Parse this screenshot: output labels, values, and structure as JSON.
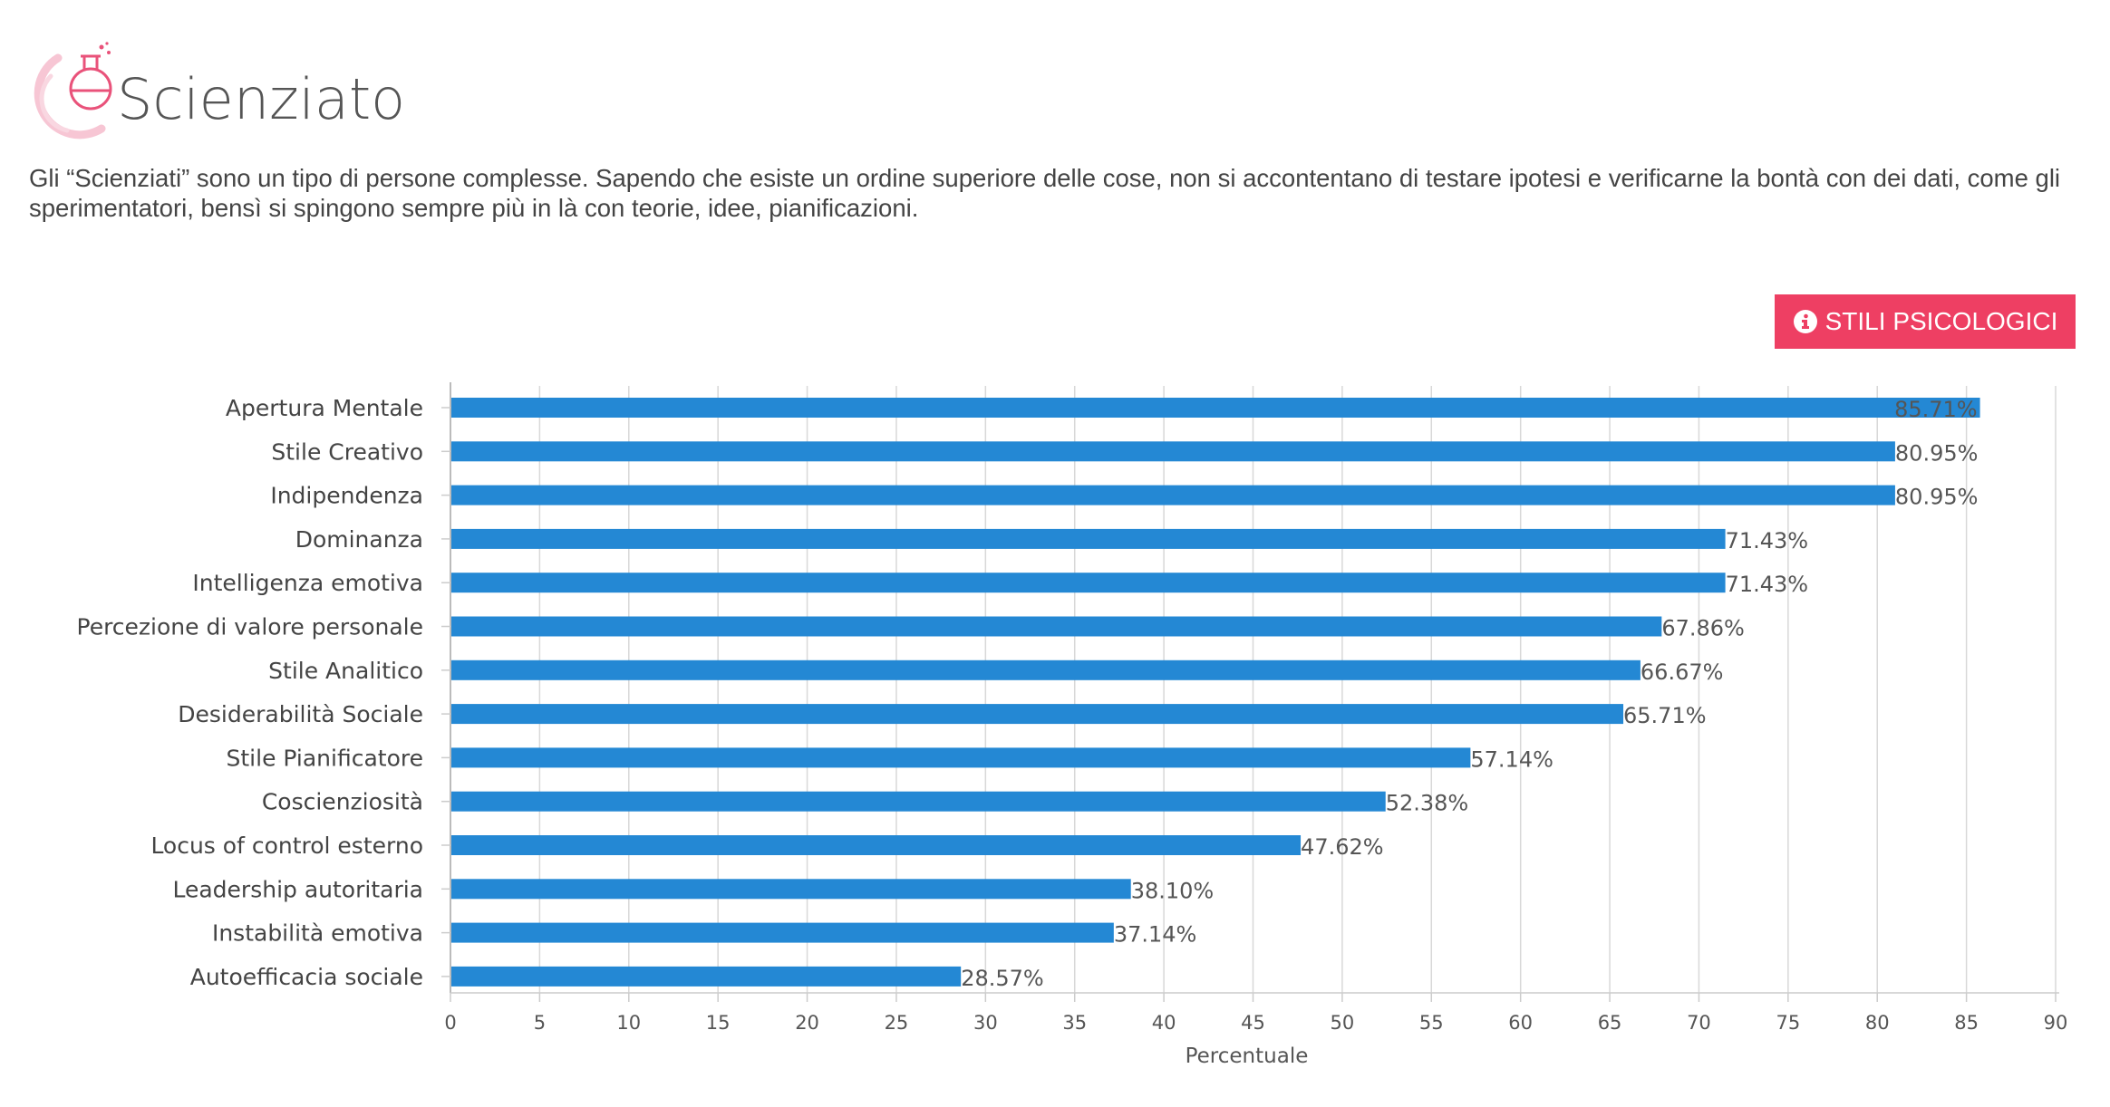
{
  "header": {
    "title": "Scienziato",
    "logo_icon": "flask-icon"
  },
  "description": "Gli “Scienziati” sono un tipo di persone complesse. Sapendo che esiste un ordine superiore delle cose, non si accontentano di testare ipotesi e verificarne la bontà con dei dati, come gli sperimentatori, bensì si spingono sempre più in là con teorie, idee, pianificazioni.",
  "button": {
    "label": "STILI PSICOLOGICI",
    "icon": "info-icon"
  },
  "colors": {
    "accent": "#ee3f63",
    "bar": "#2488d4",
    "logo": "#f3a9bf"
  },
  "chart_data": {
    "type": "bar",
    "orientation": "horizontal",
    "categories": [
      "Apertura Mentale",
      "Stile Creativo",
      "Indipendenza",
      "Dominanza",
      "Intelligenza emotiva",
      "Percezione di valore personale",
      "Stile Analitico",
      "Desiderabilità Sociale",
      "Stile Pianificatore",
      "Coscienziosità",
      "Locus of control esterno",
      "Leadership autoritaria",
      "Instabilità emotiva",
      "Autoefficacia sociale"
    ],
    "values": [
      85.71,
      80.95,
      80.95,
      71.43,
      71.43,
      67.86,
      66.67,
      65.71,
      57.14,
      52.38,
      47.62,
      38.1,
      37.14,
      28.57
    ],
    "data_labels": [
      "85.71%",
      "80.95%",
      "80.95%",
      "71.43%",
      "71.43%",
      "67.86%",
      "66.67%",
      "65.71%",
      "57.14%",
      "52.38%",
      "47.62%",
      "38.10%",
      "37.14%",
      "28.57%"
    ],
    "xlabel": "Percentuale",
    "ylabel": "",
    "xlim": [
      0,
      90
    ],
    "xticks": [
      0,
      5,
      10,
      15,
      20,
      25,
      30,
      35,
      40,
      45,
      50,
      55,
      60,
      65,
      70,
      75,
      80,
      85,
      90
    ],
    "grid": true
  }
}
